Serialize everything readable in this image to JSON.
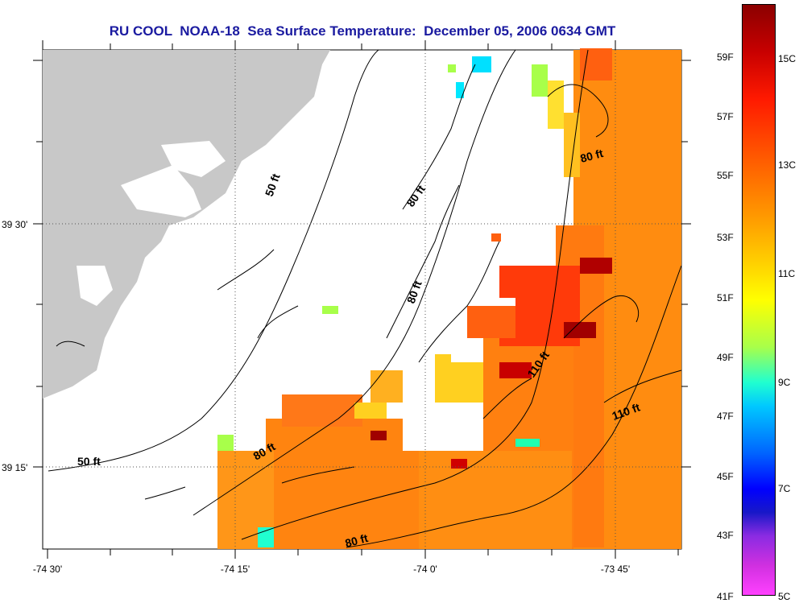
{
  "title": "RU COOL  NOAA-18  Sea Surface Temperature:  December 05, 2006 0634 GMT",
  "axes": {
    "lon_labels": [
      "-74 30'",
      "-74 15'",
      "-74 0'",
      "-73 45'"
    ],
    "lat_labels": [
      "39 30'",
      "39 15'"
    ]
  },
  "contour_labels": [
    "50 ft",
    "50 ft",
    "80 ft",
    "80 ft",
    "80 ft",
    "80 ft",
    "80 ft",
    "110 ft",
    "110 ft"
  ],
  "colorbar": {
    "fahrenheit": [
      "59F",
      "57F",
      "55F",
      "53F",
      "51F",
      "49F",
      "47F",
      "45F",
      "43F",
      "41F"
    ],
    "celsius": [
      "15C",
      "13C",
      "11C",
      "9C",
      "7C",
      "5C"
    ]
  },
  "colors": {
    "land": "#c8c8c8",
    "no_data": "#ffffff",
    "title": "#1a1aa0"
  }
}
